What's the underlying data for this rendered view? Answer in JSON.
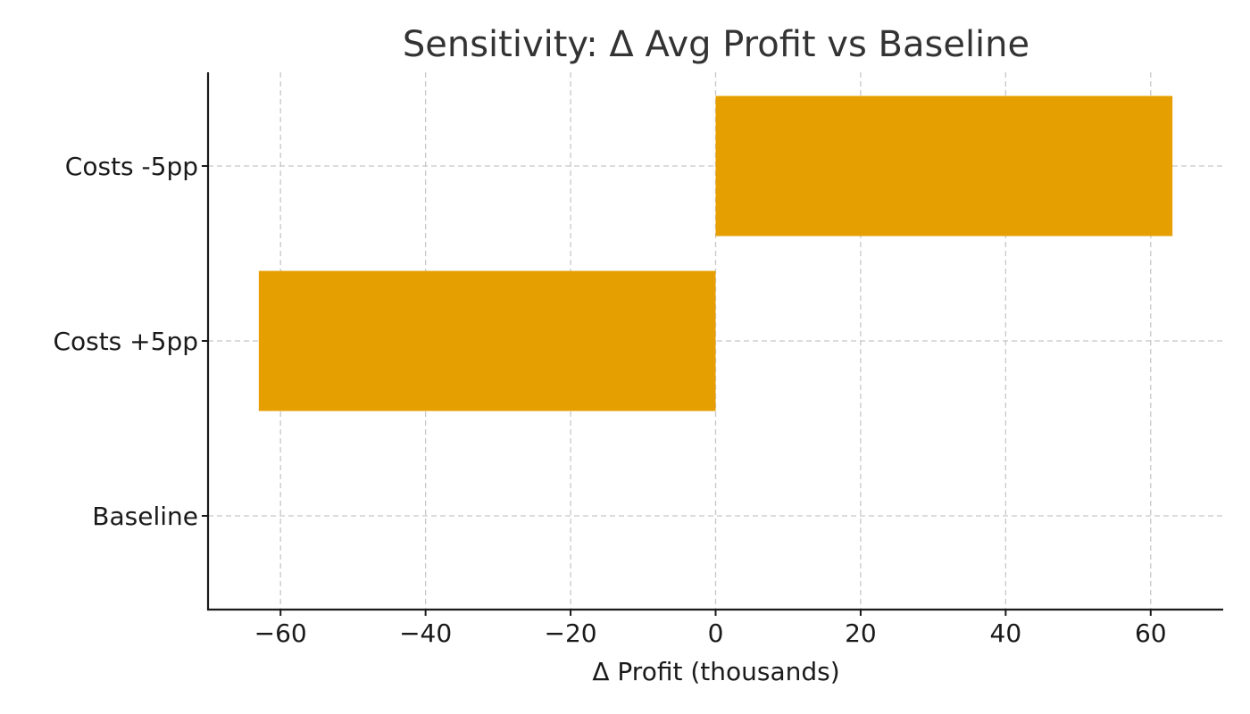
{
  "chart_data": {
    "type": "bar",
    "orientation": "horizontal",
    "title": "Sensitivity: Δ Avg Profit vs Baseline",
    "xlabel": "Δ Profit (thousands)",
    "ylabel": "",
    "categories": [
      "Baseline",
      "Costs +5pp",
      "Costs -5pp"
    ],
    "values": [
      0,
      -63,
      63
    ],
    "xlim": [
      -70,
      70
    ],
    "xticks": [
      -60,
      -40,
      -20,
      0,
      20,
      40,
      60
    ],
    "xtick_labels": [
      "−60",
      "−40",
      "−20",
      "0",
      "20",
      "40",
      "60"
    ],
    "grid": true,
    "bar_color": "#E69F00"
  }
}
